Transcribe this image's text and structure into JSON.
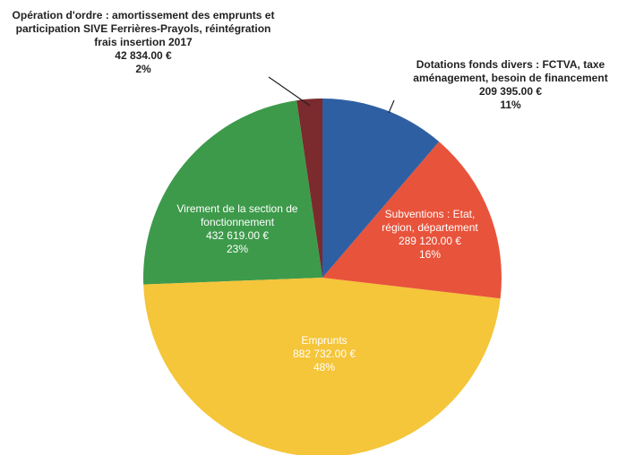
{
  "chart_data": {
    "type": "pie",
    "categories": [
      "Dotations fonds divers : FCTVA, taxe aménagement, besoin de financement",
      "Subventions : Etat, région, département",
      "Emprunts",
      "Virement de la section de fonctionnement",
      "Opération d'ordre : amortissement des emprunts et participation SIVE Ferrières-Prayols, réintégration frais insertion 2017"
    ],
    "values": [
      209395,
      289120,
      882732,
      432619,
      42834
    ],
    "value_labels": [
      "209 395.00 €",
      "289 120.00 €",
      "882 732.00 €",
      "432 619.00 €",
      "42 834.00 €"
    ],
    "percentages": [
      {
        "value": 11,
        "label": "11%"
      },
      {
        "value": 16,
        "label": "16%"
      },
      {
        "value": 48,
        "label": "48%"
      },
      {
        "value": 23,
        "label": "23%"
      },
      {
        "value": 2,
        "label": "2%"
      }
    ],
    "colors": [
      "#2e5fa3",
      "#e8533b",
      "#f5c53a",
      "#3d9a4a",
      "#7b2a2e"
    ]
  }
}
